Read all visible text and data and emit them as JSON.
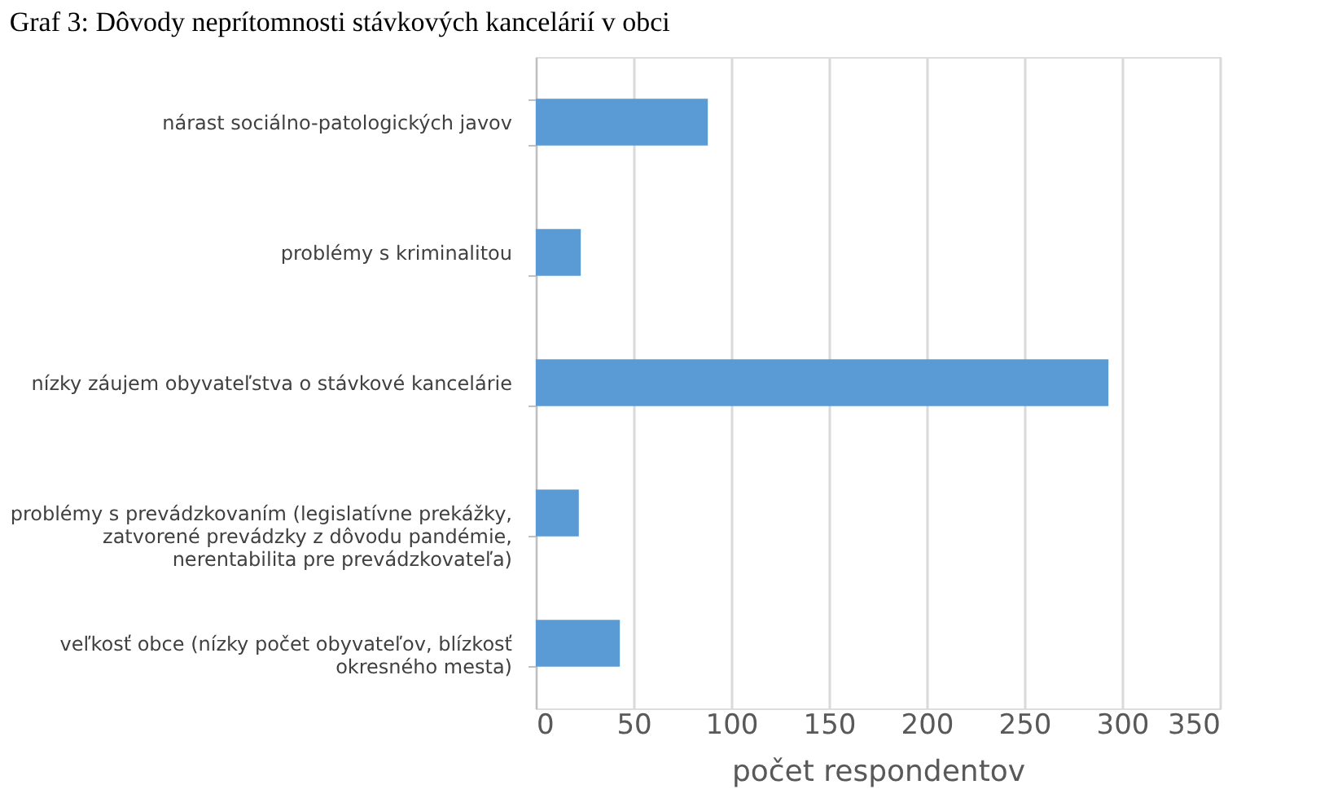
{
  "chart_data": {
    "type": "bar",
    "orientation": "horizontal",
    "title": "Graf 3: Dôvody neprítomnosti stávkových kancelárií v obci",
    "categories": [
      "nárast sociálno-patologických javov",
      "problémy s kriminalitou",
      "nízky  záujem obyvateľstva o stávkové kancelárie",
      "problémy s prevádzkovaním (legislatívne prekážky,\nzatvorené prevádzky z dôvodu pandémie,\nnerentabilita pre prevádzkovateľa)",
      "veľkosť obce (nízky počet obyvateľov, blízkosť\nokresného mesta)"
    ],
    "values": [
      88,
      23,
      293,
      22,
      43
    ],
    "color": "#5b9bd5",
    "xlabel": "počet respondentov",
    "xlim": [
      0,
      350
    ],
    "xticks": [
      0,
      50,
      100,
      150,
      200,
      250,
      300,
      350
    ],
    "grid": "x"
  }
}
